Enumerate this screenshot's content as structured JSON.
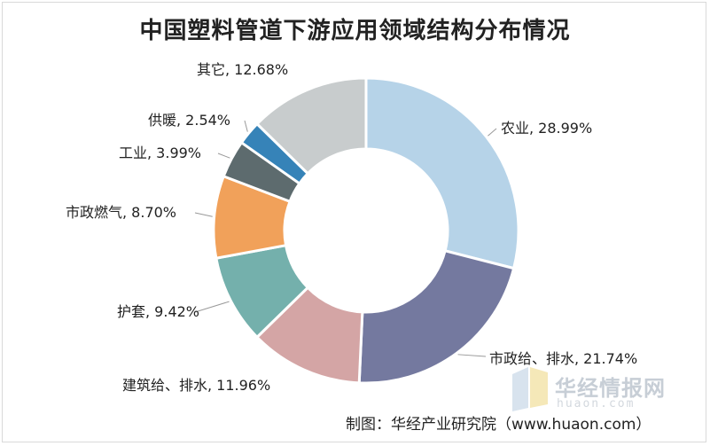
{
  "chart_data": {
    "type": "pie",
    "variant": "donut",
    "title": "中国塑料管道下游应用领域结构分布情况",
    "slices": [
      {
        "name": "农业",
        "value": 28.99,
        "label": "农业, 28.99%",
        "color": "#b6d3e8"
      },
      {
        "name": "市政给、排水",
        "value": 21.74,
        "label": "市政给、排水, 21.74%",
        "color": "#74799f"
      },
      {
        "name": "建筑给、排水",
        "value": 11.96,
        "label": "建筑给、排水, 11.96%",
        "color": "#d4a5a5"
      },
      {
        "name": "护套",
        "value": 9.42,
        "label": "护套, 9.42%",
        "color": "#74b0ac"
      },
      {
        "name": "市政燃气",
        "value": 8.7,
        "label": "市政燃气, 8.70%",
        "color": "#f1a15a"
      },
      {
        "name": "工业",
        "value": 3.99,
        "label": "工业, 3.99%",
        "color": "#5d6b6e"
      },
      {
        "name": "供暖",
        "value": 2.54,
        "label": "供暖, 2.54%",
        "color": "#3683b8"
      },
      {
        "name": "其它",
        "value": 12.68,
        "label": "其它, 12.68%",
        "color": "#c8cccd"
      }
    ],
    "start_angle_deg": 0,
    "direction": "clockwise"
  },
  "watermark": {
    "text": "华经情报网",
    "sub": "huaon.com"
  },
  "credit": "制图：华经产业研究院（www.huaon.com）"
}
